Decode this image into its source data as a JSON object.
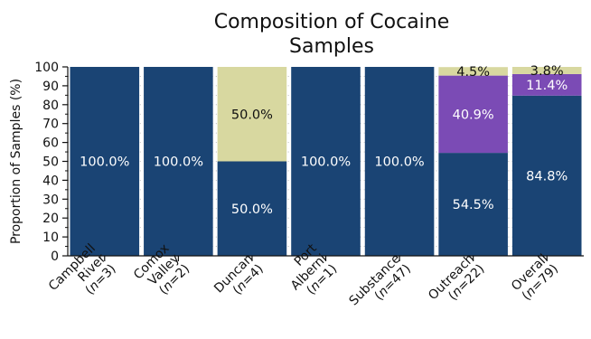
{
  "chart_data": {
    "type": "bar",
    "stacked": true,
    "title_lines": [
      "Composition of Cocaine",
      "Samples"
    ],
    "ylabel": "Proportion of Samples (%)",
    "xlabel": "",
    "ylim": [
      0,
      100
    ],
    "yticks": [
      0,
      10,
      20,
      30,
      40,
      50,
      60,
      70,
      80,
      90,
      100
    ],
    "grid": "horizontal-dotted",
    "categories": [
      {
        "lines": [
          "Campbell",
          "River"
        ],
        "n": "3"
      },
      {
        "lines": [
          "Comox",
          "Valley"
        ],
        "n": "2"
      },
      {
        "lines": [
          "Duncan"
        ],
        "n": "4"
      },
      {
        "lines": [
          "Port",
          "Alberni"
        ],
        "n": "1"
      },
      {
        "lines": [
          "Substance"
        ],
        "n": "47"
      },
      {
        "lines": [
          "Outreach"
        ],
        "n": "22"
      },
      {
        "lines": [
          "Overall"
        ],
        "n": "79"
      }
    ],
    "n_prefix": "(",
    "n_symbol": "n",
    "n_suffix": ")",
    "series": [
      {
        "color": "#1a4474",
        "label_color": "#ffffff",
        "values": [
          100.0,
          100.0,
          50.0,
          100.0,
          100.0,
          54.5,
          84.8
        ],
        "labels": [
          "100.0%",
          "100.0%",
          "50.0%",
          "100.0%",
          "100.0%",
          "54.5%",
          "84.8%"
        ]
      },
      {
        "color": "#7b4bb5",
        "label_color": "#ffffff",
        "values": [
          0,
          0,
          0,
          0,
          0,
          40.9,
          11.4
        ],
        "labels": [
          "",
          "",
          "",
          "",
          "",
          "40.9%",
          "11.4%"
        ]
      },
      {
        "color": "#d8d8a0",
        "label_color": "#111111",
        "values": [
          0,
          0,
          50.0,
          0,
          0,
          4.5,
          3.8
        ],
        "labels": [
          "",
          "",
          "50.0%",
          "",
          "",
          "4.5%",
          "3.8%"
        ]
      }
    ]
  }
}
